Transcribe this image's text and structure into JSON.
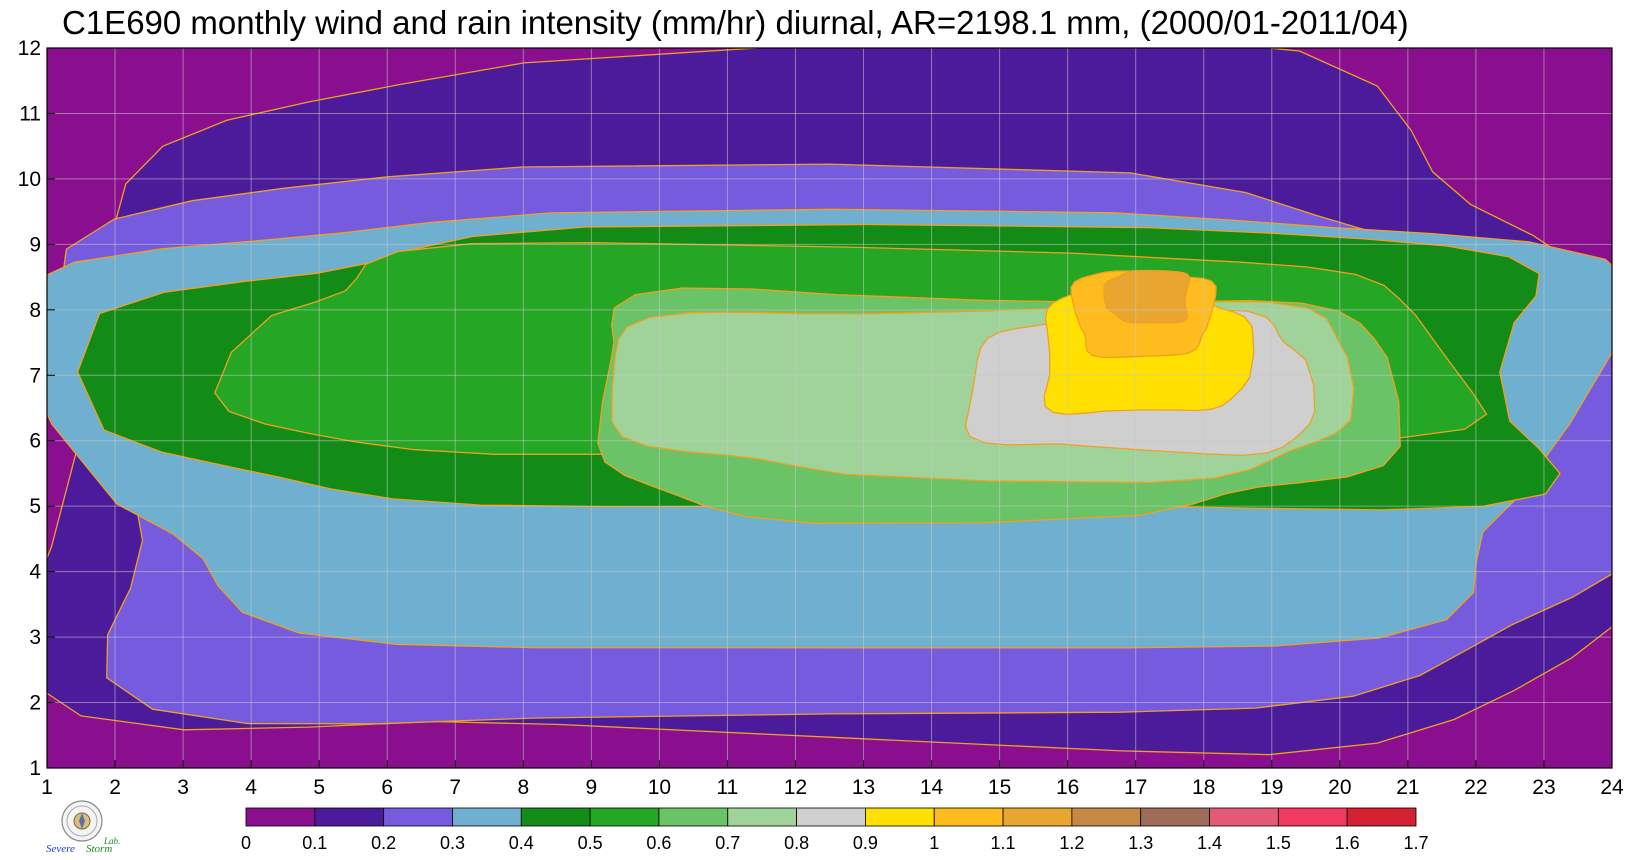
{
  "chart_data": {
    "type": "heatmap",
    "title": "C1E690 monthly wind and rain intensity (mm/hr) diurnal, AR=2198.1 mm, (2000/01-2011/04)",
    "xlabel": "",
    "ylabel": "",
    "xlim": [
      1,
      24
    ],
    "ylim": [
      1,
      12
    ],
    "x_ticks": [
      "1",
      "2",
      "3",
      "4",
      "5",
      "6",
      "7",
      "8",
      "9",
      "10",
      "11",
      "12",
      "13",
      "14",
      "15",
      "16",
      "17",
      "18",
      "19",
      "20",
      "21",
      "22",
      "23",
      "24"
    ],
    "y_ticks": [
      "1",
      "2",
      "3",
      "4",
      "5",
      "6",
      "7",
      "8",
      "9",
      "10",
      "11",
      "12"
    ],
    "grid": true,
    "colorbar": {
      "placement": "bottom",
      "levels": [
        "0",
        "0.1",
        "0.2",
        "0.3",
        "0.4",
        "0.5",
        "0.6",
        "0.7",
        "0.8",
        "0.9",
        "1",
        "1.1",
        "1.2",
        "1.3",
        "1.4",
        "1.5",
        "1.6",
        "1.7"
      ],
      "colors": [
        "#8a0f8e",
        "#4b1b9c",
        "#765bdf",
        "#6fafcf",
        "#128c16",
        "#26a625",
        "#6bc368",
        "#9fd39a",
        "#cfcfcf",
        "#ffe000",
        "#ffbc1f",
        "#e8a631",
        "#c58845",
        "#a06c5a",
        "#e45a76",
        "#f23a60",
        "#d22234"
      ]
    },
    "contour_color": "#f0a020",
    "fields": [
      {
        "level": 0.1,
        "x": [
          1,
          24
        ],
        "y": [
          1.1,
          11.7
        ]
      },
      {
        "level": 0.2,
        "x": [
          1,
          24
        ],
        "y": [
          1.7,
          10.1
        ]
      },
      {
        "level": 0.3,
        "x": [
          1.4,
          23.7
        ],
        "y": [
          2.9,
          9.6
        ]
      },
      {
        "level": 0.4,
        "x": [
          2.6,
          23.5
        ],
        "y": [
          4.9,
          9.2
        ]
      },
      {
        "level": 0.5,
        "x": [
          3.8,
          21.6
        ],
        "y": [
          5.8,
          8.9
        ]
      },
      {
        "level": 0.6,
        "x": [
          8.9,
          20.6
        ],
        "y": [
          4.9,
          8.3
        ]
      },
      {
        "level": 0.7,
        "x": [
          9.4,
          20.3
        ],
        "y": [
          5.5,
          8.1
        ]
      },
      {
        "level": 0.8,
        "x": [
          14.6,
          19.6
        ],
        "y": [
          5.8,
          7.9
        ]
      },
      {
        "level": 0.9,
        "x": [
          15.6,
          18.6
        ],
        "y": [
          6.4,
          8.3
        ]
      },
      {
        "level": 1.0,
        "x": [
          16.1,
          18.1
        ],
        "y": [
          7.3,
          8.6
        ]
      },
      {
        "level": 1.1,
        "x": [
          16.6,
          17.8
        ],
        "y": [
          7.8,
          8.6
        ]
      }
    ]
  }
}
